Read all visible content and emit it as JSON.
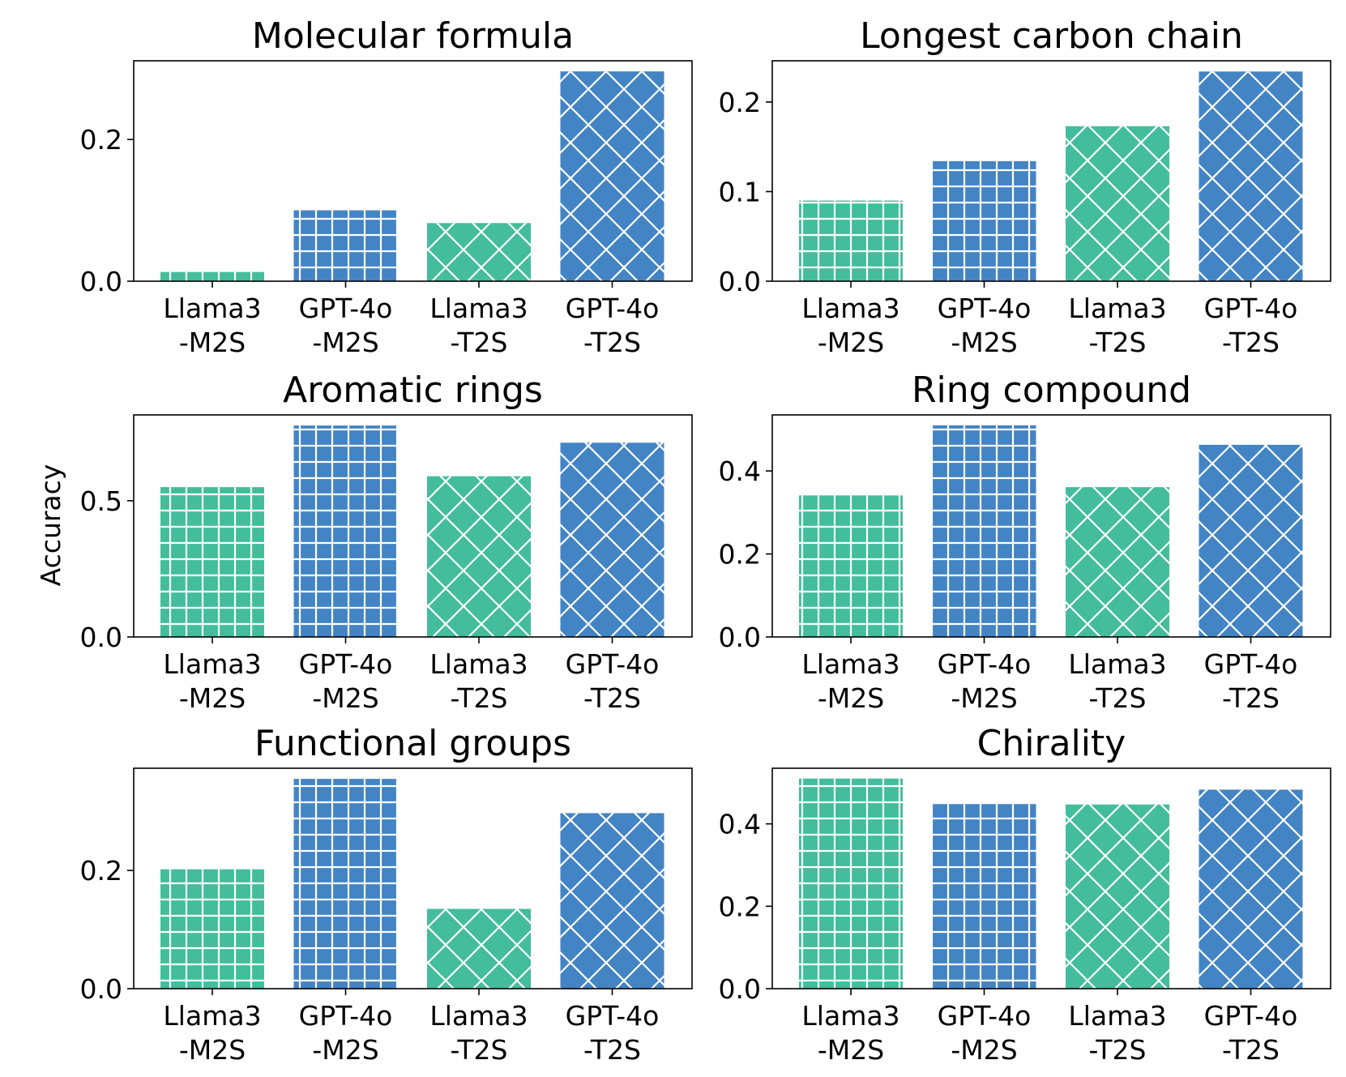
{
  "figure": {
    "ylabel": "Accuracy",
    "colors": {
      "llama": "#43bd9b",
      "gpt": "#4384c4",
      "hatch": "#ffffff",
      "axis": "#000000"
    }
  },
  "chart_data": [
    {
      "type": "bar",
      "title": "Molecular formula",
      "categories": [
        [
          "Llama3",
          "-M2S"
        ],
        [
          "GPT-4o",
          "-M2S"
        ],
        [
          "Llama3",
          "-T2S"
        ],
        [
          "GPT-4o",
          "-T2S"
        ]
      ],
      "values": [
        0.013,
        0.1,
        0.082,
        0.296
      ],
      "hatches": [
        "grid",
        "grid",
        "diamond",
        "diamond"
      ],
      "color_keys": [
        "llama",
        "gpt",
        "llama",
        "gpt"
      ],
      "ylim": [
        0,
        0.311
      ],
      "yticks": [
        0.0,
        0.2
      ],
      "ytick_labels": [
        "0.0",
        "0.2"
      ]
    },
    {
      "type": "bar",
      "title": "Longest carbon chain",
      "categories": [
        [
          "Llama3",
          "-M2S"
        ],
        [
          "GPT-4o",
          "-M2S"
        ],
        [
          "Llama3",
          "-T2S"
        ],
        [
          "GPT-4o",
          "-T2S"
        ]
      ],
      "values": [
        0.09,
        0.134,
        0.173,
        0.234
      ],
      "hatches": [
        "grid",
        "grid",
        "diamond",
        "diamond"
      ],
      "color_keys": [
        "llama",
        "gpt",
        "llama",
        "gpt"
      ],
      "ylim": [
        0,
        0.246
      ],
      "yticks": [
        0.0,
        0.1,
        0.2
      ],
      "ytick_labels": [
        "0.0",
        "0.1",
        "0.2"
      ]
    },
    {
      "type": "bar",
      "title": "Aromatic rings",
      "categories": [
        [
          "Llama3",
          "-M2S"
        ],
        [
          "GPT-4o",
          "-M2S"
        ],
        [
          "Llama3",
          "-T2S"
        ],
        [
          "GPT-4o",
          "-T2S"
        ]
      ],
      "values": [
        0.55,
        0.776,
        0.59,
        0.713
      ],
      "hatches": [
        "grid",
        "grid",
        "diamond",
        "diamond"
      ],
      "color_keys": [
        "llama",
        "gpt",
        "llama",
        "gpt"
      ],
      "ylim": [
        0,
        0.815
      ],
      "yticks": [
        0.0,
        0.5
      ],
      "ytick_labels": [
        "0.0",
        "0.5"
      ]
    },
    {
      "type": "bar",
      "title": "Ring compound",
      "categories": [
        [
          "Llama3",
          "-M2S"
        ],
        [
          "GPT-4o",
          "-M2S"
        ],
        [
          "Llama3",
          "-T2S"
        ],
        [
          "GPT-4o",
          "-T2S"
        ]
      ],
      "values": [
        0.341,
        0.51,
        0.361,
        0.463
      ],
      "hatches": [
        "grid",
        "grid",
        "diamond",
        "diamond"
      ],
      "color_keys": [
        "llama",
        "gpt",
        "llama",
        "gpt"
      ],
      "ylim": [
        0,
        0.535
      ],
      "yticks": [
        0.0,
        0.2,
        0.4
      ],
      "ytick_labels": [
        "0.0",
        "0.2",
        "0.4"
      ]
    },
    {
      "type": "bar",
      "title": "Functional groups",
      "categories": [
        [
          "Llama3",
          "-M2S"
        ],
        [
          "GPT-4o",
          "-M2S"
        ],
        [
          "Llama3",
          "-T2S"
        ],
        [
          "GPT-4o",
          "-T2S"
        ]
      ],
      "values": [
        0.202,
        0.355,
        0.135,
        0.297
      ],
      "hatches": [
        "grid",
        "grid",
        "diamond",
        "diamond"
      ],
      "color_keys": [
        "llama",
        "gpt",
        "llama",
        "gpt"
      ],
      "ylim": [
        0,
        0.373
      ],
      "yticks": [
        0.0,
        0.2
      ],
      "ytick_labels": [
        "0.0",
        "0.2"
      ]
    },
    {
      "type": "bar",
      "title": "Chirality",
      "categories": [
        [
          "Llama3",
          "-M2S"
        ],
        [
          "GPT-4o",
          "-M2S"
        ],
        [
          "Llama3",
          "-T2S"
        ],
        [
          "GPT-4o",
          "-T2S"
        ]
      ],
      "values": [
        0.51,
        0.448,
        0.447,
        0.483
      ],
      "hatches": [
        "grid",
        "grid",
        "diamond",
        "diamond"
      ],
      "color_keys": [
        "llama",
        "gpt",
        "llama",
        "gpt"
      ],
      "ylim": [
        0,
        0.535
      ],
      "yticks": [
        0.0,
        0.2,
        0.4
      ],
      "ytick_labels": [
        "0.0",
        "0.2",
        "0.4"
      ]
    }
  ]
}
